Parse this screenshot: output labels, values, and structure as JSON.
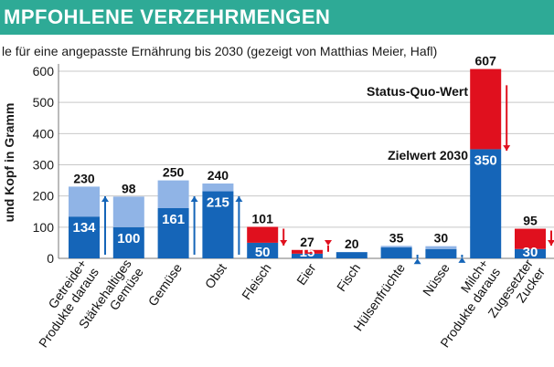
{
  "header": {
    "title": "MPFOHLENE VERZEHRMENGEN"
  },
  "subtitle": "le für eine angepasste Ernährung bis 2030 (gezeigt von Matthias Meier, Hafl)",
  "colors": {
    "header_bg": "#2eaa96",
    "target_fill": "#1565b8",
    "status_above_target": "#90b4e6",
    "status_excess": "#e0101e",
    "arrow_up": "#1565b8",
    "arrow_down": "#e0101e"
  },
  "chart_data": {
    "type": "bar",
    "ylabel": "und Kopf in Gramm",
    "ylim": [
      0,
      600
    ],
    "yticks": [
      0,
      100,
      200,
      300,
      400,
      500,
      600
    ],
    "grid": true,
    "categories": [
      "Getreide+ Produkte daraus",
      "Stärkehaltiges Gemüse",
      "Gemüse",
      "Obst",
      "Fleisch",
      "Eier",
      "Fisch",
      "Hülsenfrüchte",
      "Nüsse",
      "Milch+ Produkte daraus",
      "Zugesetzter Zucker"
    ],
    "series": [
      {
        "name": "Zielwert 2030",
        "values": [
          134,
          100,
          161,
          215,
          50,
          15,
          20,
          35,
          30,
          350,
          30
        ]
      },
      {
        "name": "Status-Quo-Wert",
        "values": [
          230,
          98,
          250,
          240,
          101,
          27,
          20,
          5,
          9,
          607,
          95
        ]
      }
    ],
    "top_labels": [
      "230",
      "98",
      "250",
      "240",
      "101",
      "27",
      "20",
      "35",
      "30",
      "607",
      "95"
    ],
    "inner_labels": [
      "134",
      "100",
      "161",
      "215",
      "50",
      "15",
      "",
      "",
      "",
      "350",
      "30"
    ],
    "trend": [
      "up",
      "",
      "up",
      "up",
      "down",
      "down",
      "",
      "up",
      "up",
      "down",
      "down"
    ],
    "annotations": {
      "status_quo": "Status-Quo-Wert",
      "target": "Zielwert 2030"
    }
  }
}
